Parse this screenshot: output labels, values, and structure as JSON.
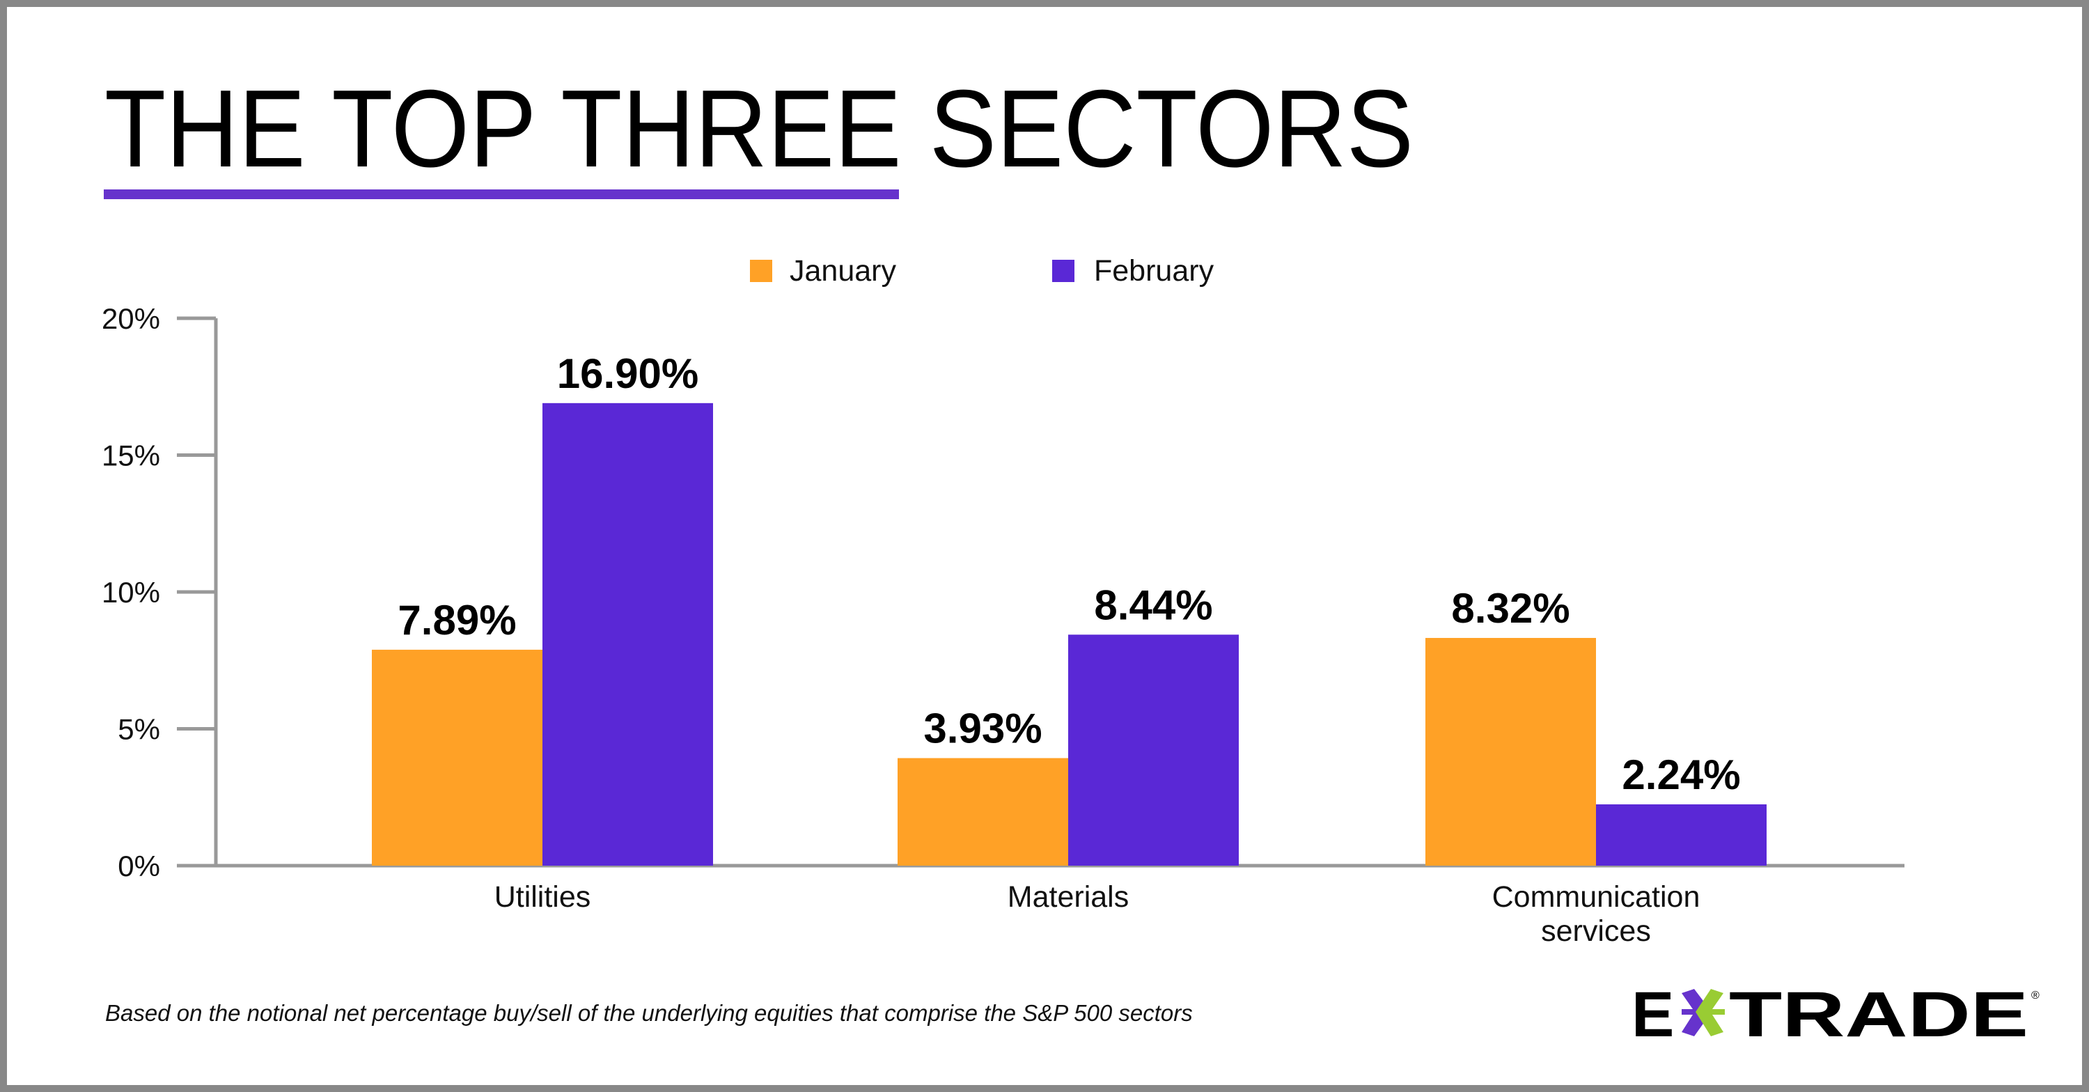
{
  "title": "THE TOP THREE SECTORS",
  "footnote": "Based on the notional net percentage buy/sell of the underlying equities that comprise the S&P 500 sectors",
  "logo": {
    "text": "E*TRADE",
    "colors": {
      "purple": "#6633CC",
      "green": "#99CC33"
    }
  },
  "colors": {
    "january": "#FFA126",
    "february": "#5A28D6",
    "accent_underline": "#6633CC",
    "axis": "#999999"
  },
  "chart_data": {
    "type": "bar",
    "categories": [
      "Utilities",
      "Materials",
      "Communication services"
    ],
    "category_lines": [
      [
        "Utilities"
      ],
      [
        "Materials"
      ],
      [
        "Communication",
        "services"
      ]
    ],
    "series": [
      {
        "name": "January",
        "values": [
          7.89,
          3.93,
          8.32
        ],
        "labels": [
          "7.89%",
          "3.93%",
          "8.32%"
        ]
      },
      {
        "name": "February",
        "values": [
          16.9,
          8.44,
          2.24
        ],
        "labels": [
          "16.90%",
          "8.44%",
          "2.24%"
        ]
      }
    ],
    "ylim": [
      0,
      20
    ],
    "yticks": [
      0,
      5,
      10,
      15,
      20
    ],
    "ytick_labels": [
      "0%",
      "5%",
      "10%",
      "15%",
      "20%"
    ],
    "legend": "top-center",
    "grid": false
  }
}
